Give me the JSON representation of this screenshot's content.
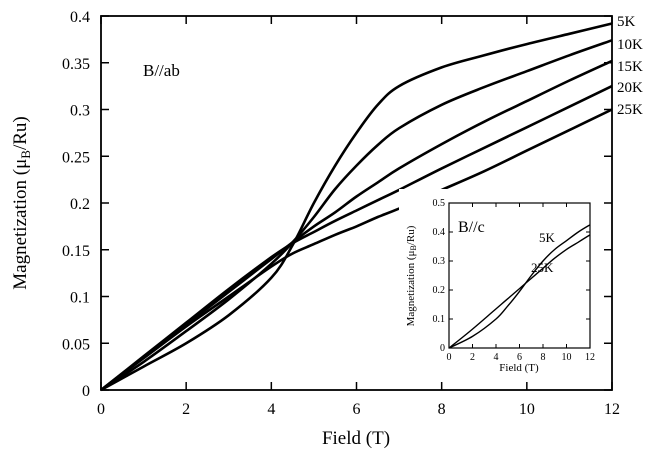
{
  "chart_data": [
    {
      "type": "line",
      "xlabel": "Field (T)",
      "ylabel_main": "Magnetization (μ",
      "ylabel_sub": "B",
      "ylabel_tail": "/Ru)",
      "annotation": "B//ab",
      "xlim": [
        0,
        12
      ],
      "ylim": [
        0,
        0.4
      ],
      "x_ticks": [
        "0",
        "2",
        "4",
        "6",
        "8",
        "10",
        "12"
      ],
      "y_ticks": [
        "0",
        "0.05",
        "0.1",
        "0.15",
        "0.2",
        "0.25",
        "0.3",
        "0.35",
        "0.4"
      ],
      "x": [
        0,
        1,
        2,
        3,
        4,
        4.5,
        5,
        5.5,
        6,
        6.5,
        7,
        8,
        9,
        10,
        11,
        12
      ],
      "series": [
        {
          "name": "5K",
          "values": [
            0,
            0.025,
            0.05,
            0.08,
            0.12,
            0.155,
            0.2,
            0.24,
            0.275,
            0.305,
            0.325,
            0.345,
            0.358,
            0.37,
            0.381,
            0.392
          ]
        },
        {
          "name": "10K",
          "values": [
            0,
            0.03,
            0.063,
            0.097,
            0.135,
            0.158,
            0.185,
            0.215,
            0.24,
            0.262,
            0.28,
            0.305,
            0.324,
            0.341,
            0.358,
            0.374
          ]
        },
        {
          "name": "15K",
          "values": [
            0,
            0.035,
            0.07,
            0.105,
            0.14,
            0.158,
            0.175,
            0.19,
            0.207,
            0.222,
            0.237,
            0.263,
            0.287,
            0.309,
            0.331,
            0.352
          ]
        },
        {
          "name": "20K",
          "values": [
            0,
            0.036,
            0.072,
            0.108,
            0.142,
            0.157,
            0.169,
            0.181,
            0.192,
            0.203,
            0.214,
            0.237,
            0.259,
            0.281,
            0.303,
            0.325
          ]
        },
        {
          "name": "25K",
          "values": [
            0,
            0.034,
            0.068,
            0.1,
            0.132,
            0.146,
            0.156,
            0.166,
            0.175,
            0.185,
            0.194,
            0.214,
            0.234,
            0.256,
            0.278,
            0.3
          ]
        }
      ]
    },
    {
      "type": "line",
      "xlabel": "Field (T)",
      "ylabel_main": "Magnetization (μ",
      "ylabel_sub": "B",
      "ylabel_tail": "/Ru)",
      "annotation": "B//c",
      "xlim": [
        0,
        12
      ],
      "ylim": [
        0,
        0.5
      ],
      "x_ticks": [
        "0",
        "2",
        "4",
        "6",
        "8",
        "10",
        "12"
      ],
      "y_ticks": [
        "0",
        "0.1",
        "0.2",
        "0.3",
        "0.4",
        "0.5"
      ],
      "x": [
        0,
        2,
        4,
        5,
        6,
        7,
        8,
        9,
        10,
        11,
        12
      ],
      "series": [
        {
          "name": "5K",
          "values": [
            0,
            0.04,
            0.1,
            0.145,
            0.195,
            0.25,
            0.3,
            0.34,
            0.37,
            0.4,
            0.425
          ]
        },
        {
          "name": "25K",
          "values": [
            0,
            0.065,
            0.135,
            0.17,
            0.205,
            0.24,
            0.275,
            0.31,
            0.34,
            0.365,
            0.39
          ]
        }
      ]
    }
  ]
}
